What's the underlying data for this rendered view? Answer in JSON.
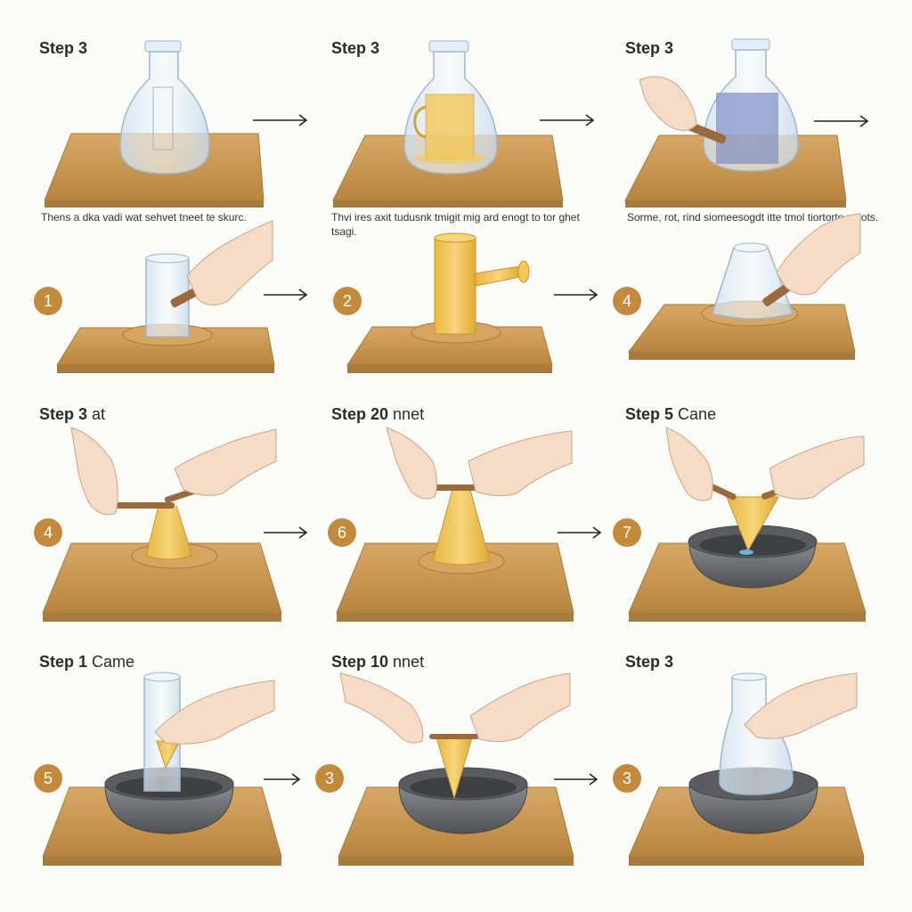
{
  "row1": {
    "p1": {
      "step": "Step 3"
    },
    "p2": {
      "step": "Step 3"
    },
    "p3": {
      "step": "Step 3"
    }
  },
  "row2": {
    "p1": {
      "caption": "Thens a dka vadi wat sehvet tneet te skurc.",
      "badge": "1"
    },
    "p2": {
      "caption": "Thvi ires axit tudusnk tmigit mig ard enogt to tor ghet tsagi.",
      "badge": "2"
    },
    "p3": {
      "caption": "Sorme, rot, rind siomeesogdt itte tmol tiortorto najots.",
      "badge": "4"
    }
  },
  "row3": {
    "p1": {
      "step": "Step 3",
      "suffix": "at",
      "badge": "4"
    },
    "p2": {
      "step": "Step 20",
      "suffix": "nnet",
      "badge": "6"
    },
    "p3": {
      "step": "Step 5",
      "suffix": "Cane",
      "badge": "7"
    }
  },
  "row4": {
    "p1": {
      "step": "Step 1",
      "suffix": "Came",
      "badge": "5"
    },
    "p2": {
      "step": "Step 10",
      "suffix": "nnet",
      "badge": "3"
    },
    "p3": {
      "step": "Step 3",
      "suffix": "",
      "badge": "3"
    }
  },
  "colors": {
    "wood": "#c99a5b",
    "wood_edge": "#a87a3e",
    "glass": "#dce9f4",
    "glass_edge": "#9fb7cc",
    "gold": "#f3c75a",
    "bowl": "#6d6f73",
    "skin": "#f6dcc6",
    "badge": "#c28a3a"
  }
}
